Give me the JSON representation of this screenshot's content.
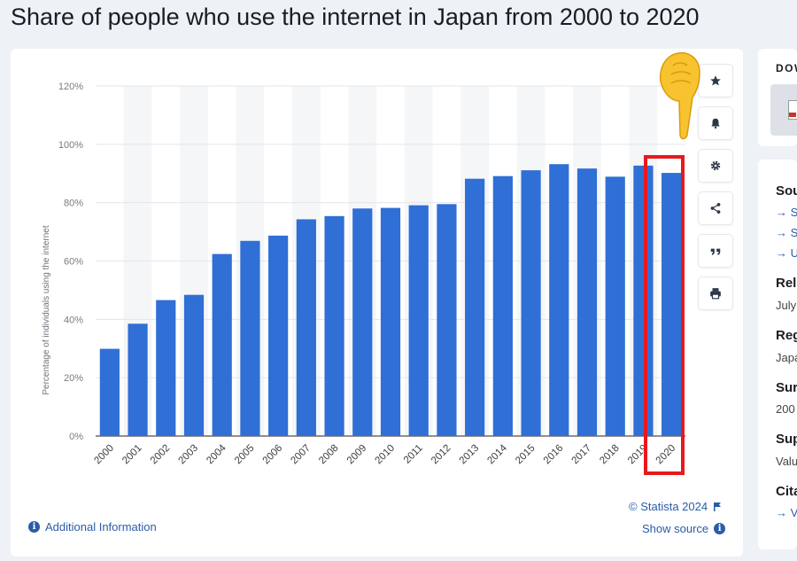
{
  "title": "Share of people who use the internet in Japan from 2000 to 2020",
  "chart_data": {
    "type": "bar",
    "title": "",
    "xlabel": "",
    "ylabel": "Percentage of individuals using the internet",
    "ylim": [
      0,
      120
    ],
    "yticks": [
      "0%",
      "20%",
      "40%",
      "60%",
      "80%",
      "100%",
      "120%"
    ],
    "categories": [
      "2000",
      "2001",
      "2002",
      "2003",
      "2004",
      "2005",
      "2006",
      "2007",
      "2008",
      "2009",
      "2010",
      "2011",
      "2012",
      "2013",
      "2014",
      "2015",
      "2016",
      "2017",
      "2018",
      "2019",
      "2020"
    ],
    "values": [
      29.9,
      38.5,
      46.6,
      48.4,
      62.4,
      66.9,
      68.7,
      74.3,
      75.4,
      78.0,
      78.2,
      79.1,
      79.5,
      88.2,
      89.1,
      91.1,
      93.2,
      91.7,
      88.9,
      92.7,
      90.2
    ],
    "bar_color": "#2f6fd6",
    "grid": true,
    "legend": "none"
  },
  "footer": {
    "credit": "© Statista 2024",
    "show_source": "Show source",
    "additional_info": "Additional Information"
  },
  "tools": [
    "star-icon",
    "bell-icon",
    "gear-icon",
    "share-icon",
    "quote-icon",
    "print-icon"
  ],
  "sidebar": {
    "download_heading": "DOW",
    "source_label": "Sou",
    "source_links": [
      "S",
      "S",
      "U"
    ],
    "release_label": "Rel",
    "release_value": "July",
    "region_label": "Reg",
    "region_value": "Japa",
    "survey_label": "Sur",
    "survey_value": "200",
    "supplementary_label": "Sup",
    "supplementary_value": "Valu",
    "citation_label": "Cita",
    "citation_link": "V"
  },
  "annotation": {
    "highlight_color": "#e8191d",
    "highlighted_category": "2020",
    "pointer": "pointing-hand-emoji"
  }
}
